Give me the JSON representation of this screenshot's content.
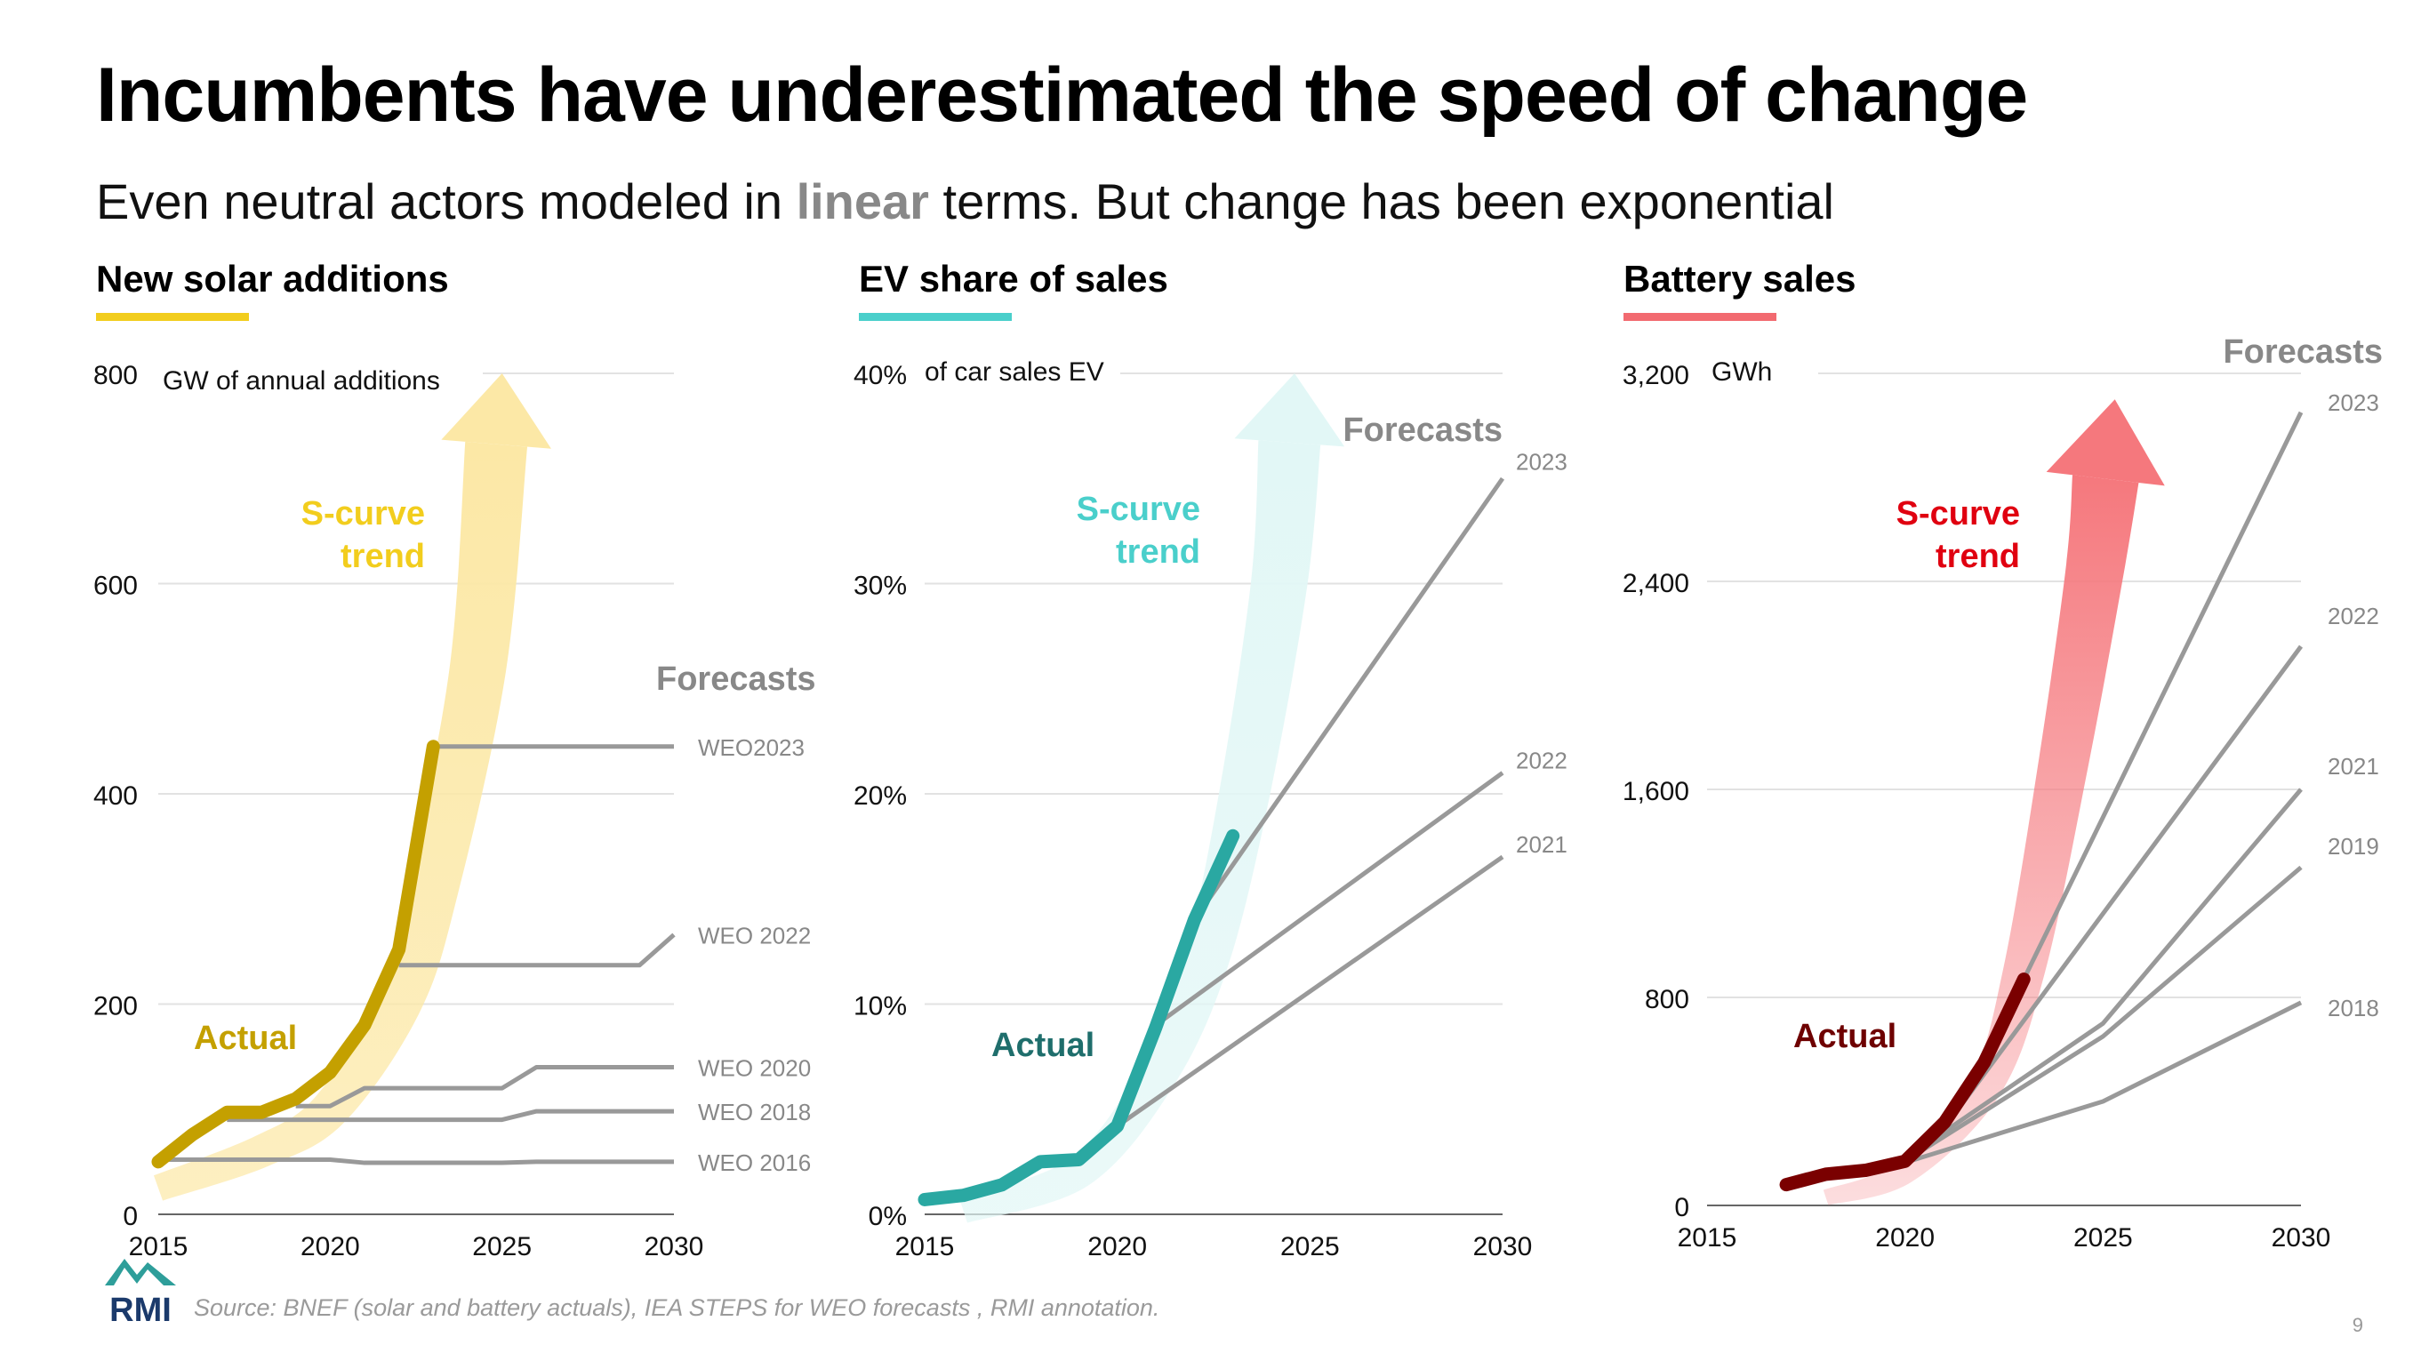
{
  "slide": {
    "title": "Incumbents have underestimated the speed of change",
    "subtitle_pre": "Even neutral actors modeled in ",
    "subtitle_highlight": "linear",
    "subtitle_post": " terms. But change has been exponential",
    "source": "Source: BNEF (solar and battery actuals), IEA STEPS for WEO forecasts , RMI annotation.",
    "page_number": "9",
    "logo_text": "RMI"
  },
  "colors": {
    "solar_accent": "#F2CD1D",
    "ev_accent": "#4ACFCB",
    "battery_accent": "#F26A70",
    "forecast_gray": "#999999"
  },
  "chart_data": [
    {
      "type": "line",
      "panel_title": "New solar additions",
      "unit_label": "GW of annual additions",
      "ylim": [
        0,
        800
      ],
      "yticks": [
        0,
        200,
        400,
        600,
        800
      ],
      "ytick_labels": [
        "0",
        "200",
        "400",
        "600",
        "800"
      ],
      "xlim": [
        2015,
        2030
      ],
      "xticks": [
        2015,
        2020,
        2025,
        2030
      ],
      "actual_label": "Actual",
      "trend_label_line1": "S-curve",
      "trend_label_line2": "trend",
      "forecasts_label": "Forecasts",
      "colors": {
        "actual": "#C4A000",
        "arrow": "#FCE8A6",
        "trend_text": "#F2CD1D",
        "actual_text": "#C4A000"
      },
      "actual": {
        "x": [
          2015,
          2016,
          2017,
          2018,
          2019,
          2020,
          2021,
          2022,
          2023
        ],
        "y": [
          50,
          76,
          97,
          97,
          110,
          135,
          180,
          252,
          445
        ]
      },
      "trend_arrow": {
        "x": [
          2015,
          2018,
          2020,
          2022,
          2023,
          2024.3,
          2025
        ],
        "y": [
          25,
          60,
          100,
          200,
          310,
          520,
          800
        ]
      },
      "forecasts": [
        {
          "name": "WEO2023",
          "x": [
            2023,
            2030
          ],
          "y": [
            445,
            445
          ]
        },
        {
          "name": "WEO 2022",
          "x": [
            2022,
            2029,
            2030
          ],
          "y": [
            237,
            237,
            266
          ]
        },
        {
          "name": "WEO 2020",
          "x": [
            2019,
            2020,
            2021,
            2025,
            2026,
            2030
          ],
          "y": [
            103,
            103,
            120,
            120,
            140,
            140
          ]
        },
        {
          "name": "WEO 2018",
          "x": [
            2017,
            2025,
            2026,
            2030
          ],
          "y": [
            90,
            90,
            98,
            98
          ]
        },
        {
          "name": "WEO 2016",
          "x": [
            2015,
            2020,
            2021,
            2025,
            2026,
            2030
          ],
          "y": [
            52,
            52,
            49,
            49,
            50,
            50
          ]
        }
      ]
    },
    {
      "type": "line",
      "panel_title": "EV share of sales",
      "unit_label": "of car sales EV",
      "ylim": [
        0,
        40
      ],
      "yticks": [
        0,
        10,
        20,
        30,
        40
      ],
      "ytick_labels": [
        "0%",
        "10%",
        "20%",
        "30%",
        "40%"
      ],
      "xlim": [
        2015,
        2030
      ],
      "xticks": [
        2015,
        2020,
        2025,
        2030
      ],
      "actual_label": "Actual",
      "trend_label_line1": "S-curve",
      "trend_label_line2": "trend",
      "forecasts_label": "Forecasts",
      "colors": {
        "actual": "#2AA8A2",
        "arrow": "#E2F7F6",
        "trend_text": "#4ACFCB",
        "actual_text": "#1F6E6C"
      },
      "actual": {
        "x": [
          2015,
          2016,
          2017,
          2018,
          2019,
          2020,
          2021,
          2022,
          2023
        ],
        "y": [
          0.7,
          0.9,
          1.4,
          2.5,
          2.6,
          4.2,
          8.9,
          14,
          18
        ]
      },
      "trend_arrow": {
        "x": [
          2016,
          2019,
          2021,
          2022.3,
          2023.3,
          2024.2,
          2024.6
        ],
        "y": [
          0.2,
          2.0,
          6.5,
          12,
          20,
          30,
          40
        ]
      },
      "forecasts": [
        {
          "name": "2023",
          "x": [
            2022,
            2030
          ],
          "y": [
            14,
            35
          ]
        },
        {
          "name": "2022",
          "x": [
            2021,
            2030
          ],
          "y": [
            9,
            21
          ]
        },
        {
          "name": "2021",
          "x": [
            2020,
            2030
          ],
          "y": [
            4.2,
            17
          ]
        }
      ]
    },
    {
      "type": "line",
      "panel_title": "Battery sales",
      "unit_label": "GWh",
      "ylim": [
        0,
        3200
      ],
      "yticks": [
        0,
        800,
        1600,
        2400,
        3200
      ],
      "ytick_labels": [
        "0",
        "800",
        "1,600",
        "2,400",
        "3,200"
      ],
      "xlim": [
        2015,
        2030
      ],
      "xticks": [
        2015,
        2020,
        2025,
        2030
      ],
      "actual_label": "Actual",
      "trend_label_line1": "S-curve",
      "trend_label_line2": "trend",
      "forecasts_label": "Forecasts",
      "colors": {
        "actual": "#7A0000",
        "arrow": "#F5787D",
        "trend_text": "#E00010",
        "actual_text": "#6E0000"
      },
      "actual": {
        "x": [
          2017,
          2018,
          2019,
          2020,
          2021,
          2022,
          2023
        ],
        "y": [
          80,
          120,
          135,
          170,
          320,
          550,
          870
        ]
      },
      "trend_arrow": {
        "x": [
          2018,
          2020,
          2022,
          2023,
          2024,
          2024.8,
          2025.3
        ],
        "y": [
          30,
          130,
          450,
          900,
          1700,
          2450,
          3100
        ]
      },
      "forecasts": [
        {
          "name": "2023",
          "x": [
            2023,
            2030
          ],
          "y": [
            870,
            3050
          ]
        },
        {
          "name": "2022",
          "x": [
            2021,
            2030
          ],
          "y": [
            300,
            2150
          ]
        },
        {
          "name": "2021",
          "x": [
            2020,
            2025,
            2030
          ],
          "y": [
            180,
            700,
            1600
          ]
        },
        {
          "name": "2019",
          "x": [
            2020,
            2025,
            2030
          ],
          "y": [
            170,
            650,
            1300
          ]
        },
        {
          "name": "2018",
          "x": [
            2020,
            2025,
            2030
          ],
          "y": [
            165,
            400,
            780
          ]
        }
      ]
    }
  ]
}
